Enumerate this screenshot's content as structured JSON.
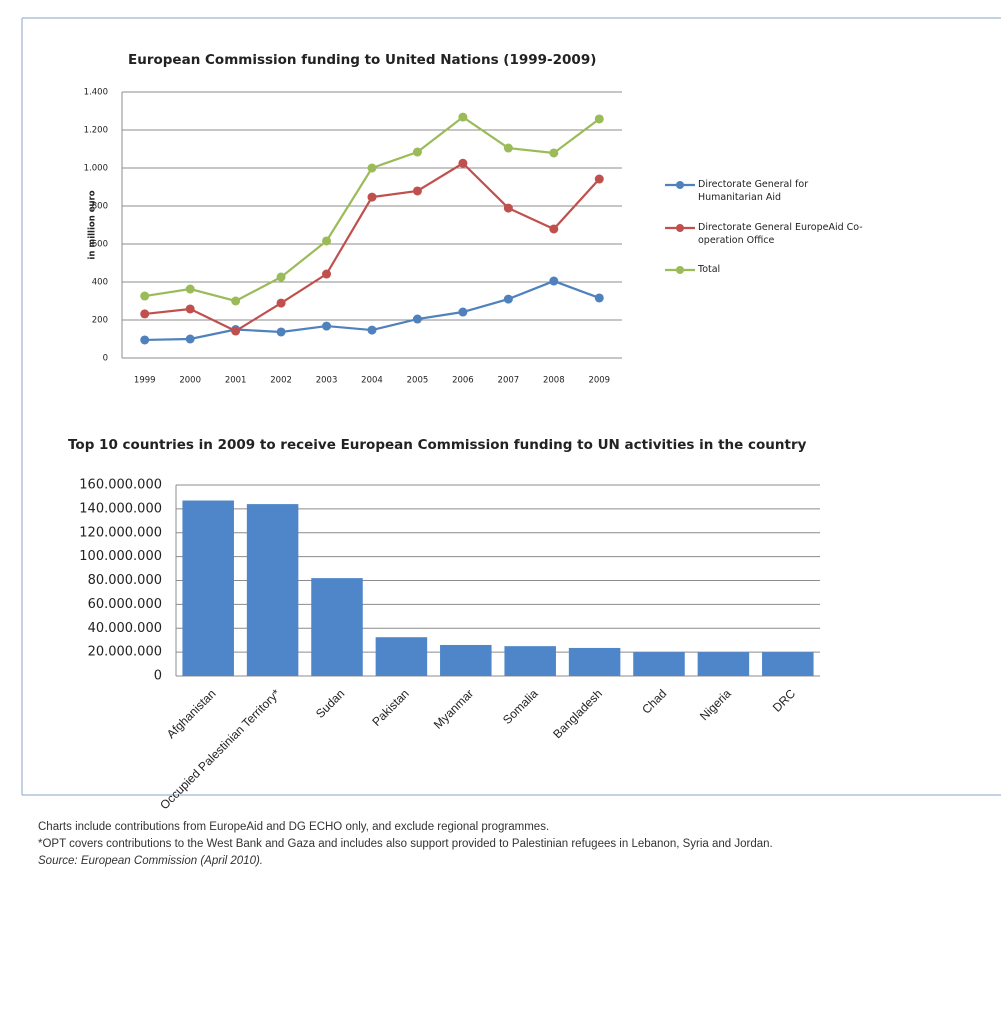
{
  "chart_data": [
    {
      "type": "line",
      "title": "European Commission funding to United Nations (1999-2009)",
      "y_label": "in million euro",
      "categories": [
        "1999",
        "2000",
        "2001",
        "2002",
        "2003",
        "2004",
        "2005",
        "2006",
        "2007",
        "2008",
        "2009"
      ],
      "series": [
        {
          "name": "Directorate General for Humanitarian Aid",
          "color": "#4f81bd",
          "values": [
            95,
            100,
            150,
            137,
            168,
            147,
            205,
            242,
            310,
            405,
            316
          ]
        },
        {
          "name": "Directorate General EuropeAid Co-operation Office",
          "color": "#c0504d",
          "values": [
            232,
            258,
            142,
            289,
            442,
            847,
            879,
            1025,
            789,
            679,
            942
          ]
        },
        {
          "name": "Total",
          "color": "#9bbb59",
          "values": [
            326,
            363,
            300,
            426,
            616,
            1000,
            1084,
            1268,
            1105,
            1079,
            1258
          ]
        }
      ],
      "ylim": [
        0,
        1400
      ],
      "yticks": [
        0,
        200,
        400,
        600,
        800,
        {
          "value": 1000,
          "label": "1.000"
        },
        {
          "value": 1200,
          "label": "1.200"
        },
        {
          "value": 1400,
          "label": "1.400"
        }
      ],
      "grid": true,
      "legend": "right"
    },
    {
      "type": "bar",
      "title": "Top 10 countries in 2009 to receive European Commission funding to UN activities in the country",
      "categories": [
        "Afghanistan",
        "Occupied Palestinian Territory*",
        "Sudan",
        "Pakistan",
        "Myanmar",
        "Somalia",
        "Bangladesh",
        "Chad",
        "Nigeria",
        "DRC"
      ],
      "values": [
        147000000,
        144000000,
        82000000,
        32500000,
        26000000,
        25000000,
        23500000,
        20000000,
        20000000,
        20000000
      ],
      "color": "#4f86c9",
      "ylim": [
        0,
        160000000
      ],
      "yticks": [
        0,
        {
          "value": 20000000,
          "label": "20.000.000"
        },
        {
          "value": 40000000,
          "label": "40.000.000"
        },
        {
          "value": 60000000,
          "label": "60.000.000"
        },
        {
          "value": 80000000,
          "label": "80.000.000"
        },
        {
          "value": 100000000,
          "label": "100.000.000"
        },
        {
          "value": 120000000,
          "label": "120.000.000"
        },
        {
          "value": 140000000,
          "label": "140.000.000"
        },
        {
          "value": 160000000,
          "label": "160.000.000"
        }
      ],
      "grid": true
    }
  ],
  "notes": [
    "Charts include contributions from EuropeAid and DG ECHO only, and exclude regional programmes.",
    "*OPT covers contributions to the West Bank and Gaza and includes also support provided to Palestinian refugees in Lebanon, Syria and Jordan.",
    "Source: European Commission (April 2010)."
  ]
}
